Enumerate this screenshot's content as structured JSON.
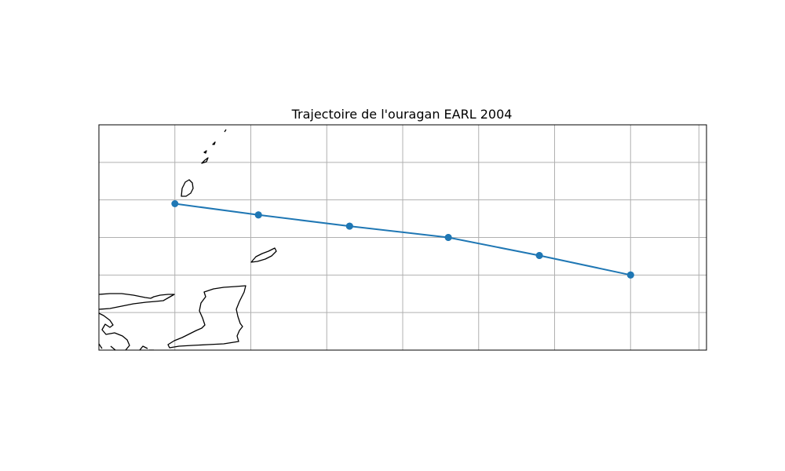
{
  "chart_data": {
    "type": "map-track",
    "title": "Trajectoire de l'ouragan EARL 2004",
    "projection": "PlateCarree",
    "extent": {
      "lon": [
        -62.0,
        -54.0
      ],
      "lat": [
        10.0,
        13.0
      ]
    },
    "gridlines": {
      "lon": [
        -61.0,
        -60.0,
        -59.0,
        -58.0,
        -57.0,
        -56.0,
        -55.0,
        -54.1
      ],
      "lat": [
        10.5,
        11.0,
        11.5,
        12.0,
        12.5
      ]
    },
    "grid": true,
    "series": [
      {
        "lon": [
          -55.0,
          -56.2,
          -57.4,
          -58.7,
          -59.9,
          -61.0,
          -59.9,
          -58.7,
          -57.4,
          -56.2,
          -55.0
        ],
        "lat": [
          11.0,
          11.26,
          11.5,
          11.65,
          11.8,
          11.95,
          11.8,
          11.65,
          11.5,
          11.26,
          11.0
        ],
        "color": "#1f77b4",
        "marker": "circle"
      }
    ]
  }
}
